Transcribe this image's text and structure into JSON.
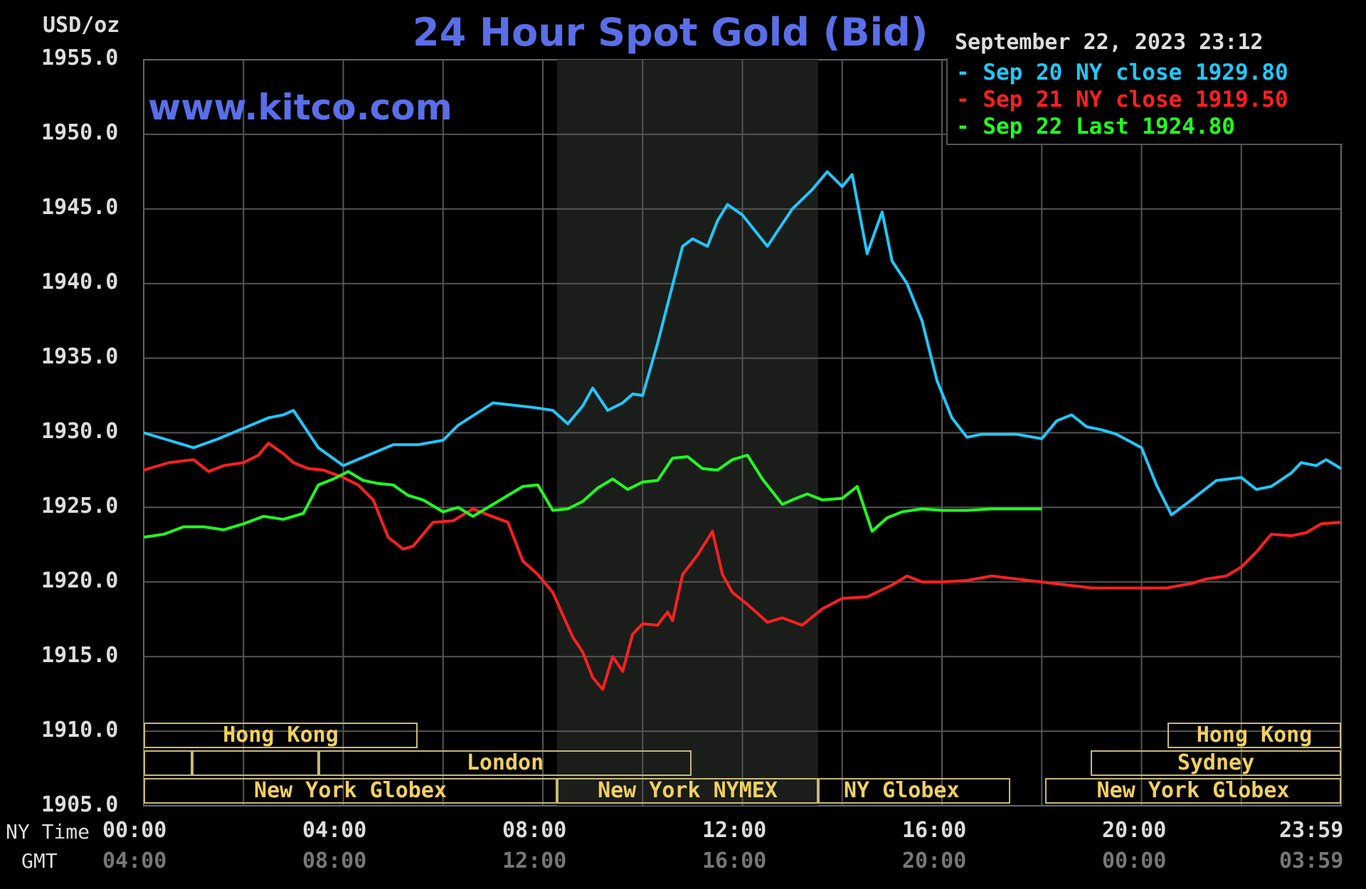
{
  "header": {
    "unit_label": "USD/oz",
    "title": "24 Hour Spot Gold (Bid)",
    "site": "www.kitco.com",
    "date_stamp": "September 22, 2023 23:12"
  },
  "legend": [
    {
      "text": "Sep 20 NY close 1929.80",
      "color": "#20c8ff"
    },
    {
      "text": "Sep 21 NY close 1919.50",
      "color": "#ff2020"
    },
    {
      "text": "Sep 22 Last 1924.80",
      "color": "#20ff20"
    }
  ],
  "axis": {
    "ny_time_label": "NY Time",
    "gmt_label": "GMT",
    "ny_ticks": [
      "00:00",
      "04:00",
      "08:00",
      "12:00",
      "16:00",
      "20:00",
      "23:59"
    ],
    "gmt_ticks": [
      "04:00",
      "08:00",
      "12:00",
      "16:00",
      "20:00",
      "00:00",
      "03:59"
    ],
    "y_ticks": [
      "1955.0",
      "1950.0",
      "1945.0",
      "1940.0",
      "1935.0",
      "1930.0",
      "1925.0",
      "1920.0",
      "1915.0",
      "1910.0",
      "1905.0"
    ]
  },
  "sessions": {
    "hong_kong_1": "Hong Kong",
    "london": "London",
    "ny_globex_1": "New York Globex",
    "ny_nymex": "New York NYMEX",
    "ny_globex_2": "NY Globex",
    "hong_kong_2": "Hong Kong",
    "sydney": "Sydney",
    "ny_globex_3": "New York Globex"
  },
  "colors": {
    "background": "#000000",
    "grid": "#555555",
    "shade": "#1a1d1a",
    "session_border": "#c8b878",
    "session_text": "#f0d060",
    "title": "#5a6ee8"
  },
  "chart_data": {
    "type": "line",
    "title": "24 Hour Spot Gold (Bid)",
    "ylabel": "USD/oz",
    "xlabel": "NY Time",
    "xlim": [
      0,
      24
    ],
    "ylim": [
      1905,
      1955
    ],
    "grid": true,
    "legend_placement": "top-right",
    "series": [
      {
        "name": "Sep 20 NY close 1929.80",
        "color": "#20c8ff",
        "x": [
          0,
          0.5,
          1,
          1.5,
          2,
          2.5,
          2.8,
          3,
          3.3,
          3.5,
          4,
          4.5,
          5,
          5.5,
          6,
          6.3,
          7,
          7.8,
          8.2,
          8.5,
          8.8,
          9,
          9.3,
          9.6,
          9.8,
          10,
          10.3,
          10.8,
          11,
          11.3,
          11.5,
          11.7,
          12,
          12.5,
          13,
          13.4,
          13.7,
          14,
          14.2,
          14.5,
          14.8,
          15,
          15.3,
          15.6,
          15.9,
          16.2,
          16.5,
          16.8,
          17,
          17.2,
          17.5,
          18,
          18.3,
          18.6,
          18.9,
          19.2,
          19.5,
          20,
          20.3,
          20.6,
          21,
          21.5,
          22,
          22.3,
          22.6,
          23,
          23.2,
          23.5,
          23.7,
          24
        ],
        "values": [
          1930,
          1929.5,
          1929,
          1929.6,
          1930.3,
          1931,
          1931.2,
          1931.5,
          1930,
          1929,
          1927.8,
          1928.5,
          1929.2,
          1929.2,
          1929.5,
          1930.5,
          1932,
          1931.7,
          1931.5,
          1930.6,
          1931.8,
          1933,
          1931.5,
          1932,
          1932.6,
          1932.5,
          1936,
          1942.5,
          1943,
          1942.5,
          1944.2,
          1945.3,
          1944.6,
          1942.5,
          1945,
          1946.3,
          1947.5,
          1946.5,
          1947.3,
          1942,
          1944.8,
          1941.5,
          1940,
          1937.5,
          1933.5,
          1931,
          1929.7,
          1929.9,
          1929.9,
          1929.9,
          1929.9,
          1929.6,
          1930.8,
          1931.2,
          1930.4,
          1930.2,
          1929.9,
          1929,
          1926.5,
          1924.5,
          1925.5,
          1926.8,
          1927,
          1926.2,
          1926.4,
          1927.3,
          1928,
          1927.8,
          1928.2,
          1927.6
        ]
      },
      {
        "name": "Sep 21 NY close 1919.50",
        "color": "#ff2020",
        "x": [
          0,
          0.5,
          1,
          1.3,
          1.6,
          2,
          2.3,
          2.5,
          2.8,
          3,
          3.3,
          3.6,
          4,
          4.3,
          4.6,
          4.9,
          5.2,
          5.4,
          5.8,
          6.2,
          6.6,
          6.9,
          7.3,
          7.6,
          7.9,
          8.2,
          8.6,
          8.8,
          9,
          9.2,
          9.4,
          9.6,
          9.8,
          10,
          10.3,
          10.5,
          10.6,
          10.8,
          11.1,
          11.4,
          11.6,
          11.8,
          12.1,
          12.5,
          12.8,
          13.2,
          13.6,
          14,
          14.5,
          15,
          15.3,
          15.6,
          16,
          16.5,
          17,
          18,
          19,
          20,
          20.5,
          21,
          21.3,
          21.7,
          22,
          22.3,
          22.6,
          23,
          23.3,
          23.6,
          24
        ],
        "values": [
          1927.5,
          1928,
          1928.2,
          1927.4,
          1927.8,
          1928,
          1928.5,
          1929.3,
          1928.6,
          1928,
          1927.6,
          1927.5,
          1927,
          1926.5,
          1925.5,
          1923,
          1922.2,
          1922.4,
          1924,
          1924.1,
          1924.9,
          1924.5,
          1924,
          1921.4,
          1920.5,
          1919.3,
          1916.3,
          1915.3,
          1913.6,
          1912.8,
          1915,
          1914,
          1916.5,
          1917.2,
          1917.1,
          1918,
          1917.4,
          1920.5,
          1921.8,
          1923.4,
          1920.5,
          1919.3,
          1918.5,
          1917.3,
          1917.6,
          1917.1,
          1918.2,
          1918.9,
          1919,
          1919.8,
          1920.4,
          1920,
          1920,
          1920.1,
          1920.4,
          1920,
          1919.6,
          1919.6,
          1919.6,
          1919.9,
          1920.2,
          1920.4,
          1921,
          1922,
          1923.2,
          1923.1,
          1923.3,
          1923.9,
          1924
        ]
      },
      {
        "name": "Sep 22 Last 1924.80",
        "color": "#20ff20",
        "x": [
          0,
          0.4,
          0.8,
          1.2,
          1.6,
          2,
          2.4,
          2.8,
          3.2,
          3.5,
          3.8,
          4.1,
          4.4,
          4.7,
          5,
          5.3,
          5.6,
          6,
          6.3,
          6.6,
          7,
          7.3,
          7.6,
          7.9,
          8.2,
          8.5,
          8.8,
          9.1,
          9.4,
          9.7,
          10,
          10.3,
          10.6,
          10.9,
          11.2,
          11.5,
          11.8,
          12.1,
          12.4,
          12.8,
          13,
          13.3,
          13.6,
          14,
          14.3,
          14.6,
          14.9,
          15.2,
          15.6,
          16,
          16.5,
          17,
          17.5,
          18
        ],
        "values": [
          1923,
          1923.2,
          1923.7,
          1923.7,
          1923.5,
          1923.9,
          1924.4,
          1924.2,
          1924.6,
          1926.5,
          1926.9,
          1927.4,
          1926.8,
          1926.6,
          1926.5,
          1925.8,
          1925.5,
          1924.7,
          1925,
          1924.4,
          1925.2,
          1925.8,
          1926.4,
          1926.5,
          1924.8,
          1924.9,
          1925.4,
          1926.3,
          1926.9,
          1926.2,
          1926.7,
          1926.8,
          1928.3,
          1928.4,
          1927.6,
          1927.5,
          1928.2,
          1928.5,
          1926.9,
          1925.2,
          1925.5,
          1925.9,
          1925.5,
          1925.6,
          1926.4,
          1923.4,
          1924.3,
          1924.7,
          1924.9,
          1924.8,
          1924.8,
          1924.9,
          1924.9,
          1924.9
        ]
      }
    ]
  }
}
